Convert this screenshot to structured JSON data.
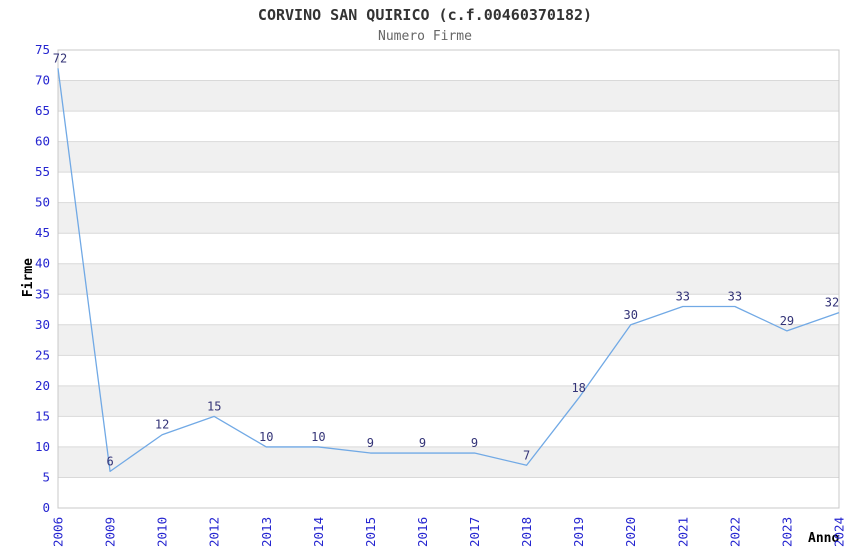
{
  "chart_data": {
    "type": "line",
    "title": "CORVINO SAN QUIRICO (c.f.00460370182)",
    "subtitle": "Numero Firme",
    "xlabel": "Anno",
    "ylabel": "Firme",
    "categories": [
      "2006",
      "2009",
      "2010",
      "2012",
      "2013",
      "2014",
      "2015",
      "2016",
      "2017",
      "2018",
      "2019",
      "2020",
      "2021",
      "2022",
      "2023",
      "2024"
    ],
    "values": [
      72,
      6,
      12,
      15,
      10,
      10,
      9,
      9,
      9,
      7,
      18,
      30,
      33,
      33,
      29,
      32
    ],
    "ylim": [
      0,
      75
    ],
    "ytick_step": 5,
    "grid": true,
    "legend": "none",
    "band_pattern": "alternating gray bands on 5-10, 15-20, 25-30, 35-40, 45-50, 55-60, 65-70",
    "colors": {
      "line": "#71a9e5",
      "tick_label": "#2525d0",
      "value_label": "#333377",
      "band": "#f0f0f0",
      "gridline": "#d9d9d9",
      "plot_border": "#c8c8c8",
      "title": "#333333",
      "subtitle": "#666666",
      "axis_label": "#000000",
      "background": "#ffffff"
    }
  }
}
